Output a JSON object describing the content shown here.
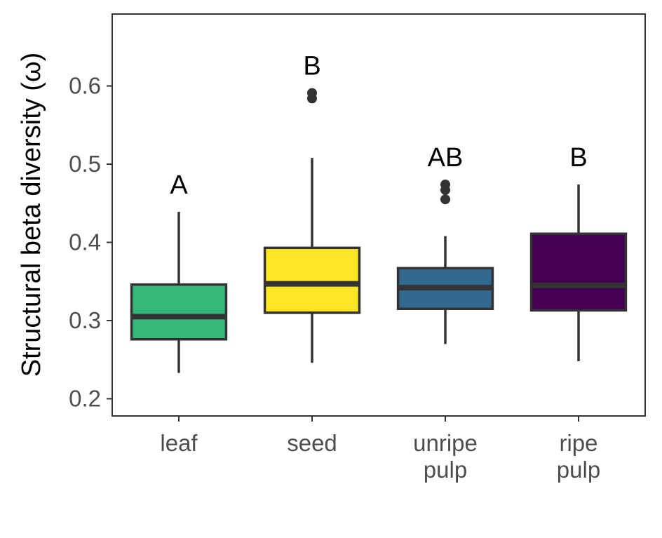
{
  "chart_data": {
    "type": "boxplot",
    "title": "",
    "xlabel": "",
    "ylabel": "Structural beta diversity (ω)",
    "ylim": [
      0.178,
      0.692
    ],
    "yticks": [
      0.2,
      0.3,
      0.4,
      0.5,
      0.6
    ],
    "ytick_labels": [
      "0.2",
      "0.3",
      "0.4",
      "0.5",
      "0.6"
    ],
    "grid": false,
    "legend": "none",
    "categories": [
      {
        "label_lines": [
          "leaf"
        ]
      },
      {
        "label_lines": [
          "seed"
        ]
      },
      {
        "label_lines": [
          "unripe",
          "pulp"
        ]
      },
      {
        "label_lines": [
          "ripe",
          "pulp"
        ]
      }
    ],
    "boxes": [
      {
        "min": 0.233,
        "q1": 0.276,
        "median": 0.305,
        "q3": 0.346,
        "max": 0.439,
        "outliers": [],
        "color": "#35b779",
        "letter": "A"
      },
      {
        "min": 0.246,
        "q1": 0.31,
        "median": 0.347,
        "q3": 0.393,
        "max": 0.508,
        "outliers": [
          0.584,
          0.591
        ],
        "color": "#fde725",
        "letter": "B"
      },
      {
        "min": 0.27,
        "q1": 0.315,
        "median": 0.342,
        "q3": 0.367,
        "max": 0.408,
        "outliers": [
          0.455,
          0.467,
          0.474
        ],
        "color": "#31688e",
        "letter": "AB"
      },
      {
        "min": 0.248,
        "q1": 0.313,
        "median": 0.345,
        "q3": 0.411,
        "max": 0.474,
        "outliers": [],
        "color": "#440154",
        "letter": "B"
      }
    ]
  }
}
